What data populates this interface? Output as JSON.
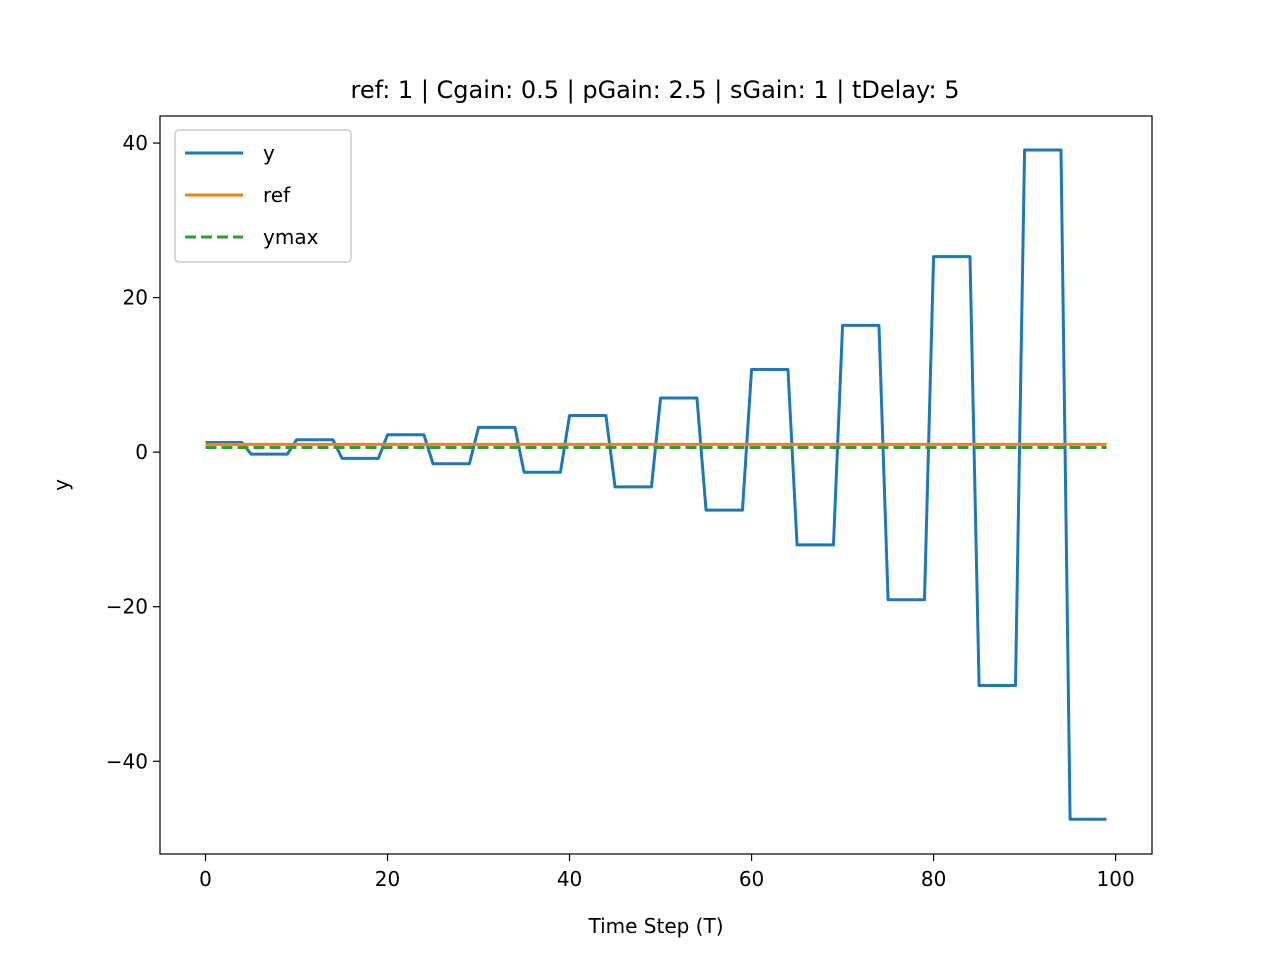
{
  "chart_data": {
    "type": "line",
    "title": "ref: 1 | Cgain: 0.5 | pGain: 2.5 | sGain: 1 | tDelay: 5",
    "xlabel": "Time Step (T)",
    "ylabel": "y",
    "xlim": [
      -5,
      104
    ],
    "ylim": [
      -52,
      43.5
    ],
    "xticks": [
      0,
      20,
      40,
      60,
      80,
      100
    ],
    "yticks": [
      -40,
      -20,
      0,
      20,
      40
    ],
    "xtick_labels": [
      "0",
      "20",
      "40",
      "60",
      "80",
      "100"
    ],
    "ytick_labels": [
      "−40",
      "−20",
      "0",
      "20",
      "40"
    ],
    "grid": false,
    "legend_position": "upper-left",
    "series": [
      {
        "name": "y",
        "color": "#1f77b4",
        "style": "solid",
        "x": [
          0,
          4,
          5,
          9,
          10,
          14,
          15,
          19,
          20,
          24,
          25,
          29,
          30,
          34,
          35,
          39,
          40,
          44,
          45,
          49,
          50,
          54,
          55,
          59,
          60,
          64,
          65,
          69,
          70,
          74,
          75,
          79,
          80,
          84,
          85,
          89,
          90,
          94,
          95,
          99
        ],
        "y": [
          1.25,
          1.25,
          -0.25,
          -0.25,
          1.6,
          1.6,
          -0.8,
          -0.8,
          2.25,
          2.25,
          -1.5,
          -1.5,
          3.2,
          3.2,
          -2.6,
          -2.6,
          4.75,
          4.75,
          -4.5,
          -4.5,
          7.0,
          7.0,
          -7.5,
          -7.5,
          10.7,
          10.7,
          -12.0,
          -12.0,
          16.4,
          16.4,
          -19.1,
          -19.1,
          25.3,
          25.3,
          -30.2,
          -30.2,
          39.1,
          39.1,
          -47.5,
          -47.5
        ]
      },
      {
        "name": "ref",
        "color": "#ff7f0e",
        "style": "solid",
        "x": [
          0,
          99
        ],
        "y": [
          1,
          1
        ]
      },
      {
        "name": "ymax",
        "color": "#2ca02c",
        "style": "dashed",
        "x": [
          0,
          99
        ],
        "y": [
          0.6,
          0.6
        ]
      }
    ]
  }
}
